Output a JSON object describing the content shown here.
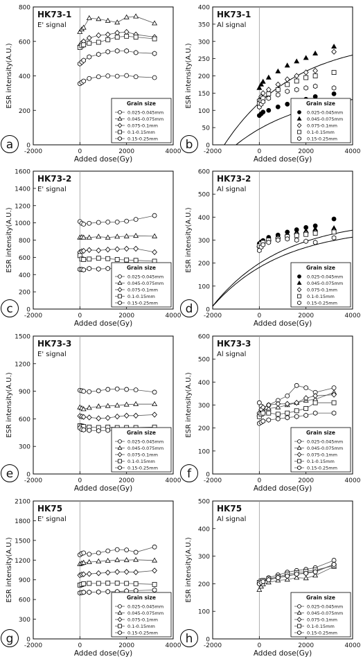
{
  "figure": {
    "x_ticks": [
      -2000,
      0,
      2000,
      4000
    ],
    "xlabel": "Added dose(Gy)",
    "ylabel": "ESR intensity(A.U.)",
    "legend_title": "Grain size",
    "legend_labels": [
      "0.025-0.045mm",
      "0.045-0.075mm",
      "0.075-0.1mm",
      "0.1-0.15mm",
      "0.15-0.25mm"
    ]
  },
  "chart_data": [
    {
      "type": "scatter",
      "panel": "a",
      "title": "HK73-1",
      "subtitle": "E' signal",
      "xlim": [
        -2000,
        4000
      ],
      "ylim": [
        0,
        800
      ],
      "yticks": [
        0,
        200,
        400,
        600,
        800
      ],
      "legend_filled": false,
      "dose": [
        0,
        80,
        160,
        400,
        800,
        1200,
        1600,
        2000,
        2400,
        3200
      ],
      "series": [
        {
          "name": "0.025-0.045mm",
          "marker": "circle",
          "values": [
            355,
            362,
            370,
            385,
            395,
            400,
            398,
            402,
            395,
            390
          ]
        },
        {
          "name": "0.045-0.075mm",
          "marker": "triangle",
          "values": [
            655,
            670,
            680,
            735,
            730,
            720,
            710,
            740,
            745,
            705
          ]
        },
        {
          "name": "0.075-0.1mm",
          "marker": "diamond",
          "values": [
            575,
            590,
            600,
            620,
            635,
            640,
            650,
            655,
            640,
            625
          ]
        },
        {
          "name": "0.1-0.15mm",
          "marker": "square",
          "values": [
            565,
            575,
            580,
            590,
            595,
            610,
            625,
            630,
            625,
            615
          ]
        },
        {
          "name": "0.15-0.25mm",
          "marker": "hexagon",
          "values": [
            470,
            480,
            490,
            510,
            525,
            540,
            545,
            545,
            535,
            530
          ]
        }
      ]
    },
    {
      "type": "scatter",
      "panel": "b",
      "title": "HK73-1",
      "subtitle": "Al signal",
      "xlim": [
        -2000,
        4000
      ],
      "ylim": [
        0,
        400
      ],
      "yticks": [
        0,
        50,
        100,
        150,
        200,
        250,
        300,
        350,
        400
      ],
      "legend_filled": true,
      "dose": [
        0,
        80,
        160,
        400,
        800,
        1200,
        1600,
        2000,
        2400,
        3200
      ],
      "series": [
        {
          "name": "0.025-0.045mm",
          "marker": "circle",
          "filled": true,
          "values": [
            85,
            90,
            95,
            100,
            110,
            118,
            125,
            132,
            140,
            148
          ]
        },
        {
          "name": "0.045-0.075mm",
          "marker": "triangle",
          "filled": true,
          "values": [
            165,
            175,
            183,
            195,
            213,
            230,
            242,
            252,
            265,
            285
          ]
        },
        {
          "name": "0.075-0.1mm",
          "marker": "diamond",
          "values": [
            130,
            140,
            150,
            160,
            175,
            190,
            200,
            210,
            215,
            270
          ]
        },
        {
          "name": "0.1-0.15mm",
          "marker": "square",
          "values": [
            120,
            128,
            135,
            148,
            160,
            175,
            185,
            195,
            200,
            210
          ]
        },
        {
          "name": "0.15-0.25mm",
          "marker": "hexagon",
          "values": [
            110,
            118,
            125,
            135,
            145,
            155,
            160,
            165,
            170,
            165
          ]
        }
      ],
      "fits": [
        {
          "intercept": -1500,
          "asymptote": 310
        },
        {
          "intercept": -1000,
          "asymptote": 162
        }
      ]
    },
    {
      "type": "scatter",
      "panel": "c",
      "title": "HK73-2",
      "subtitle": "E' signal",
      "xlim": [
        -2000,
        4000
      ],
      "ylim": [
        0,
        1600
      ],
      "yticks": [
        0,
        200,
        400,
        600,
        800,
        1000,
        1200,
        1400,
        1600
      ],
      "legend_filled": false,
      "dose": [
        0,
        80,
        160,
        400,
        800,
        1200,
        1600,
        2000,
        2400,
        3200
      ],
      "series": [
        {
          "name": "0.025-0.045mm",
          "marker": "circle",
          "values": [
            1015,
            995,
            985,
            995,
            1005,
            1010,
            1010,
            1020,
            1040,
            1085
          ]
        },
        {
          "name": "0.045-0.075mm",
          "marker": "triangle",
          "values": [
            830,
            835,
            830,
            830,
            840,
            830,
            840,
            845,
            850,
            845
          ]
        },
        {
          "name": "0.075-0.1mm",
          "marker": "diamond",
          "values": [
            660,
            670,
            675,
            685,
            680,
            690,
            695,
            700,
            700,
            660
          ]
        },
        {
          "name": "0.1-0.15mm",
          "marker": "square",
          "values": [
            620,
            580,
            575,
            580,
            590,
            585,
            575,
            570,
            565,
            555
          ]
        },
        {
          "name": "0.15-0.25mm",
          "marker": "hexagon",
          "values": [
            460,
            460,
            455,
            470,
            465,
            470,
            470,
            475,
            475,
            485
          ]
        }
      ]
    },
    {
      "type": "scatter",
      "panel": "d",
      "title": "HK73-2",
      "subtitle": "Al signal",
      "xlim": [
        -2000,
        4000
      ],
      "ylim": [
        0,
        600
      ],
      "yticks": [
        0,
        100,
        200,
        300,
        400,
        500,
        600
      ],
      "legend_filled": true,
      "dose": [
        0,
        80,
        160,
        400,
        800,
        1200,
        1600,
        2000,
        2400,
        3200
      ],
      "series": [
        {
          "name": "0.025-0.045mm",
          "marker": "circle",
          "filled": true,
          "values": [
            285,
            292,
            298,
            312,
            322,
            335,
            345,
            355,
            362,
            392
          ]
        },
        {
          "name": "0.045-0.075mm",
          "marker": "triangle",
          "filled": true,
          "values": [
            280,
            290,
            295,
            305,
            315,
            325,
            335,
            340,
            348,
            352
          ]
        },
        {
          "name": "0.075-0.1mm",
          "marker": "diamond",
          "values": [
            270,
            280,
            290,
            300,
            310,
            318,
            325,
            330,
            335,
            340
          ]
        },
        {
          "name": "0.1-0.15mm",
          "marker": "square",
          "values": [
            275,
            285,
            290,
            300,
            305,
            315,
            320,
            325,
            330,
            335
          ]
        },
        {
          "name": "0.15-0.25mm",
          "marker": "hexagon",
          "values": [
            255,
            270,
            280,
            290,
            300,
            305,
            300,
            295,
            290,
            310
          ]
        }
      ],
      "fits": [
        {
          "intercept": -2100,
          "asymptote": 395
        },
        {
          "intercept": -2100,
          "asymptote": 360
        }
      ]
    },
    {
      "type": "scatter",
      "panel": "e",
      "title": "HK73-3",
      "subtitle": "E' signal",
      "xlim": [
        -2000,
        4000
      ],
      "ylim": [
        0,
        1500
      ],
      "yticks": [
        0,
        300,
        600,
        900,
        1200,
        1500
      ],
      "legend_filled": false,
      "dose": [
        0,
        80,
        160,
        400,
        800,
        1200,
        1600,
        2000,
        2400,
        3200
      ],
      "series": [
        {
          "name": "0.025-0.045mm",
          "marker": "circle",
          "values": [
            910,
            905,
            900,
            895,
            905,
            920,
            925,
            920,
            915,
            890
          ]
        },
        {
          "name": "0.045-0.075mm",
          "marker": "triangle",
          "values": [
            725,
            715,
            705,
            720,
            735,
            740,
            745,
            755,
            760,
            760
          ]
        },
        {
          "name": "0.075-0.1mm",
          "marker": "diamond",
          "values": [
            630,
            625,
            620,
            615,
            605,
            610,
            625,
            635,
            635,
            645
          ]
        },
        {
          "name": "0.1-0.15mm",
          "marker": "square",
          "values": [
            525,
            520,
            515,
            510,
            505,
            510,
            505,
            505,
            505,
            510
          ]
        },
        {
          "name": "0.15-0.25mm",
          "marker": "hexagon",
          "values": [
            500,
            485,
            480,
            475,
            470,
            475,
            470,
            470,
            470,
            465
          ]
        }
      ]
    },
    {
      "type": "scatter",
      "panel": "f",
      "title": "HK73-3",
      "subtitle": "Al signal",
      "xlim": [
        -2000,
        4000
      ],
      "ylim": [
        0,
        600
      ],
      "yticks": [
        0,
        100,
        200,
        300,
        400,
        500,
        600
      ],
      "legend_filled": false,
      "dose": [
        0,
        80,
        160,
        400,
        800,
        1200,
        1600,
        2000,
        2400,
        3200
      ],
      "series": [
        {
          "name": "0.025-0.045mm",
          "marker": "circle",
          "values": [
            310,
            295,
            285,
            300,
            320,
            340,
            385,
            375,
            355,
            375
          ]
        },
        {
          "name": "0.045-0.075mm",
          "marker": "triangle",
          "values": [
            260,
            270,
            275,
            285,
            290,
            300,
            310,
            320,
            325,
            355
          ]
        },
        {
          "name": "0.075-0.1mm",
          "marker": "diamond",
          "values": [
            265,
            280,
            290,
            300,
            305,
            305,
            310,
            330,
            340,
            345
          ]
        },
        {
          "name": "0.1-0.15mm",
          "marker": "square",
          "values": [
            250,
            260,
            265,
            265,
            260,
            265,
            275,
            285,
            310,
            310
          ]
        },
        {
          "name": "0.15-0.25mm",
          "marker": "hexagon",
          "values": [
            220,
            225,
            230,
            235,
            240,
            245,
            250,
            255,
            265,
            265
          ]
        }
      ]
    },
    {
      "type": "scatter",
      "panel": "g",
      "title": "HK75",
      "subtitle": "E' signal",
      "xlim": [
        -2000,
        4000
      ],
      "ylim": [
        0,
        2100
      ],
      "yticks": [
        0,
        300,
        600,
        900,
        1200,
        1500,
        1800,
        2100
      ],
      "legend_filled": false,
      "dose": [
        0,
        80,
        160,
        400,
        800,
        1200,
        1600,
        2000,
        2400,
        3200
      ],
      "series": [
        {
          "name": "0.025-0.045mm",
          "marker": "circle",
          "values": [
            1280,
            1300,
            1310,
            1290,
            1310,
            1340,
            1360,
            1355,
            1320,
            1400
          ]
        },
        {
          "name": "0.045-0.075mm",
          "marker": "triangle",
          "values": [
            1140,
            1150,
            1160,
            1170,
            1180,
            1190,
            1200,
            1200,
            1205,
            1195
          ]
        },
        {
          "name": "0.075-0.1mm",
          "marker": "diamond",
          "values": [
            970,
            980,
            985,
            990,
            1000,
            1010,
            1020,
            1020,
            1015,
            1040
          ]
        },
        {
          "name": "0.1-0.15mm",
          "marker": "square",
          "values": [
            820,
            830,
            840,
            845,
            845,
            850,
            850,
            845,
            840,
            830
          ]
        },
        {
          "name": "0.15-0.25mm",
          "marker": "hexagon",
          "values": [
            700,
            705,
            710,
            710,
            715,
            720,
            720,
            730,
            735,
            745
          ]
        }
      ]
    },
    {
      "type": "scatter",
      "panel": "h",
      "title": "HK75",
      "subtitle": "Al signal",
      "xlim": [
        -2000,
        4000
      ],
      "ylim": [
        0,
        500
      ],
      "yticks": [
        0,
        100,
        200,
        300,
        400,
        500
      ],
      "legend_filled": false,
      "dose": [
        0,
        80,
        160,
        400,
        800,
        1200,
        1600,
        2000,
        2400,
        3200
      ],
      "series": [
        {
          "name": "0.025-0.045mm",
          "marker": "circle",
          "values": [
            205,
            208,
            212,
            222,
            232,
            242,
            248,
            252,
            258,
            285
          ]
        },
        {
          "name": "0.045-0.075mm",
          "marker": "triangle",
          "values": [
            178,
            190,
            198,
            205,
            212,
            215,
            222,
            220,
            230,
            262
          ]
        },
        {
          "name": "0.075-0.1mm",
          "marker": "diamond",
          "values": [
            200,
            205,
            210,
            215,
            222,
            230,
            235,
            240,
            245,
            270
          ]
        },
        {
          "name": "0.1-0.15mm",
          "marker": "square",
          "values": [
            205,
            210,
            212,
            218,
            225,
            235,
            240,
            245,
            250,
            265
          ]
        },
        {
          "name": "0.15-0.25mm",
          "marker": "hexagon",
          "values": [
            200,
            205,
            208,
            214,
            222,
            228,
            235,
            238,
            243,
            270
          ]
        }
      ]
    }
  ]
}
